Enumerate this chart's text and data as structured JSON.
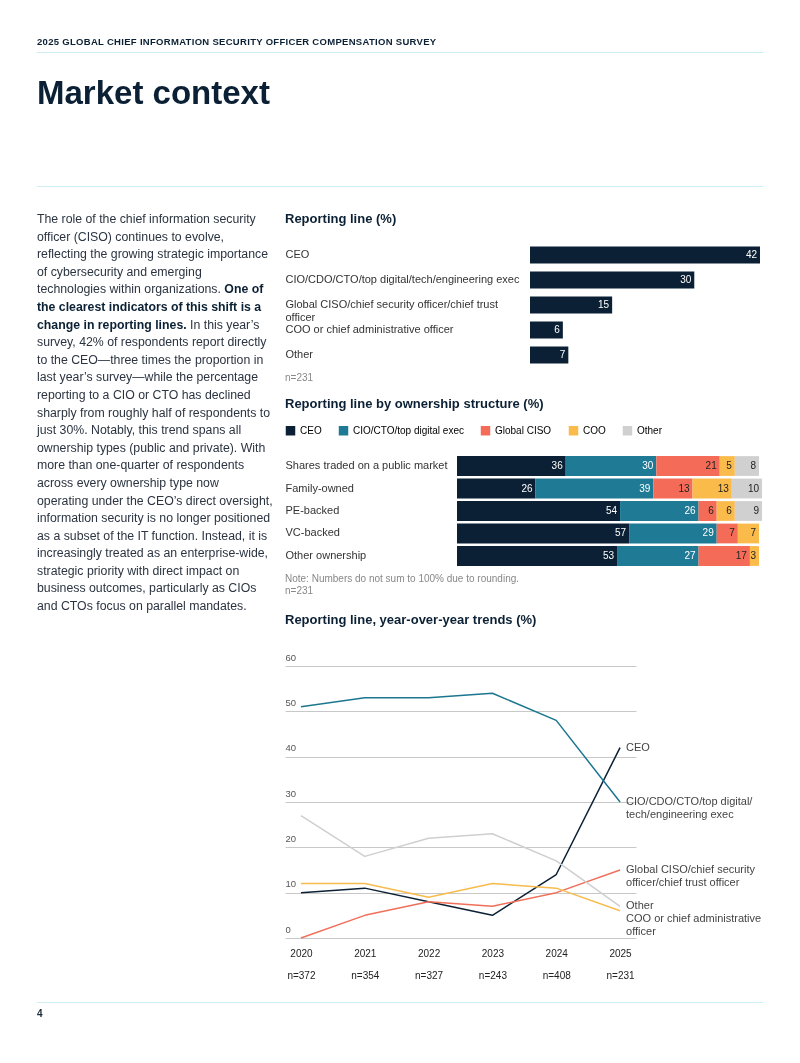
{
  "chart_data": [
    {
      "type": "other",
      "subtitle": "2025 GLOBAL CHIEF INFORMATION SECURITY OFFICER COMPENSATION SURVEY",
      "title": "Market context",
      "annotations": [
        "The role of the chief information security officer (CISO) continues to evolve, reflecting the growing strategic importance of cybersecurity and emerging technologies within organizations. ",
        "One of the clearest indicators of this shift is a change in reporting lines.",
        "In this year’s survey, 42% of respondents report directly to the CEO—three times the proportion in last year’s survey—while the percentage reporting to a CIO or CTO has declined sharply from roughly half of respondents to just 30%. Notably, this trend spans all ownership types (public and private). With more than one-quarter of respondents across every ownership type now operating under the CEO’s direct oversight, information security is no longer positioned as a subset of the IT function. Instead, it is increasingly treated as an enterprise-wide, strategic priority with direct impact on business outcomes, particularly as CIOs and CTOs focus on parallel mandates.",
        "4"
      ]
    },
    {
      "type": "bar",
      "orientation": "horizontal",
      "title": "Reporting line (%)",
      "categories": [
        "CEO",
        "CIO/CDO/CTO/top digital/tech/engineering exec",
        "Global CISO/chief security officer/chief trust officer",
        "COO or chief administrative officer",
        "Other"
      ],
      "values": [
        42,
        30,
        15,
        6,
        7
      ],
      "color": "#0b2034",
      "data_labels": true,
      "annotations": [
        "n=231"
      ]
    },
    {
      "type": "bar",
      "orientation": "horizontal",
      "stacked": true,
      "title": "Reporting line by ownership structure (%)",
      "categories": [
        "Shares traded on a public market",
        "Family-owned",
        "PE-backed",
        "VC-backed",
        "Other ownership"
      ],
      "series": [
        {
          "name": "CEO",
          "color": "#0b2034",
          "values": [
            36,
            26,
            54,
            57,
            53
          ]
        },
        {
          "name": "CIO/CTO/top digital exec",
          "color": "#1f7a96",
          "values": [
            30,
            39,
            26,
            29,
            27
          ]
        },
        {
          "name": "Global CISO",
          "color": "#f46c58",
          "values": [
            21,
            13,
            6,
            7,
            17
          ]
        },
        {
          "name": "COO",
          "color": "#fbbb4b",
          "values": [
            5,
            13,
            6,
            7,
            3
          ]
        },
        {
          "name": "Other",
          "color": "#d0d0d0",
          "values": [
            8,
            10,
            9,
            null,
            null
          ]
        }
      ],
      "legend": "top",
      "data_labels": true,
      "annotations": [
        "Note: Numbers do not sum to 100% due to rounding.",
        "n=231"
      ]
    },
    {
      "type": "line",
      "title": "Reporting line, year-over-year trends (%)",
      "categories": [
        "2020\nn=372",
        "2021\nn=354",
        "2022\nn=327",
        "2023\nn=243",
        "2024\nn=408",
        "2025\nn=231"
      ],
      "series": [
        {
          "name": "CEO",
          "color": "#0b2034",
          "values": [
            10,
            11,
            8,
            5,
            14,
            42
          ]
        },
        {
          "name": "CIO/CDO/CTO/top digital/tech/engineering exec",
          "color": "#1c7690",
          "values": [
            51,
            53,
            53,
            54,
            48,
            30
          ]
        },
        {
          "name": "Global CISO/chief security officer/chief trust officer",
          "color": "#f0705a",
          "values": [
            0,
            5,
            8,
            7,
            10,
            15
          ]
        },
        {
          "name": "Other",
          "color": "#cfcfcf",
          "values": [
            27,
            18,
            22,
            23,
            17,
            7
          ]
        },
        {
          "name": "COO or chief administrative officer",
          "color": "#f8bb4d",
          "values": [
            12,
            12,
            9,
            12,
            11,
            6
          ]
        }
      ],
      "ylim": [
        0,
        60
      ],
      "yticks": [
        0,
        10,
        20,
        30,
        40,
        50,
        60
      ],
      "grid": "y"
    }
  ]
}
